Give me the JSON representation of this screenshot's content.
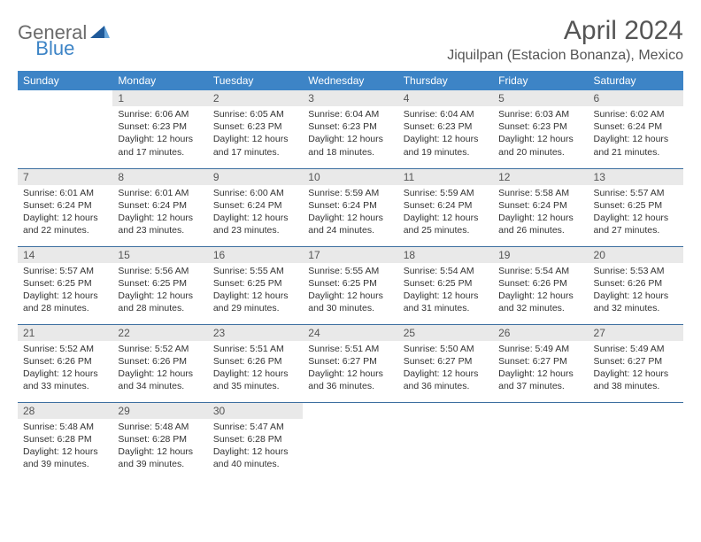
{
  "logo": {
    "general": "General",
    "blue": "Blue"
  },
  "title": "April 2024",
  "location": "Jiquilpan (Estacion Bonanza), Mexico",
  "colors": {
    "header_bg": "#3d84c6",
    "header_text": "#ffffff",
    "daynum_bg": "#e9e9e9",
    "row_border": "#3d6fa0",
    "title_color": "#555555"
  },
  "weekdays": [
    "Sunday",
    "Monday",
    "Tuesday",
    "Wednesday",
    "Thursday",
    "Friday",
    "Saturday"
  ],
  "weeks": [
    [
      {
        "empty": true
      },
      {
        "num": "1",
        "sunrise": "Sunrise: 6:06 AM",
        "sunset": "Sunset: 6:23 PM",
        "daylight": "Daylight: 12 hours and 17 minutes."
      },
      {
        "num": "2",
        "sunrise": "Sunrise: 6:05 AM",
        "sunset": "Sunset: 6:23 PM",
        "daylight": "Daylight: 12 hours and 17 minutes."
      },
      {
        "num": "3",
        "sunrise": "Sunrise: 6:04 AM",
        "sunset": "Sunset: 6:23 PM",
        "daylight": "Daylight: 12 hours and 18 minutes."
      },
      {
        "num": "4",
        "sunrise": "Sunrise: 6:04 AM",
        "sunset": "Sunset: 6:23 PM",
        "daylight": "Daylight: 12 hours and 19 minutes."
      },
      {
        "num": "5",
        "sunrise": "Sunrise: 6:03 AM",
        "sunset": "Sunset: 6:23 PM",
        "daylight": "Daylight: 12 hours and 20 minutes."
      },
      {
        "num": "6",
        "sunrise": "Sunrise: 6:02 AM",
        "sunset": "Sunset: 6:24 PM",
        "daylight": "Daylight: 12 hours and 21 minutes."
      }
    ],
    [
      {
        "num": "7",
        "sunrise": "Sunrise: 6:01 AM",
        "sunset": "Sunset: 6:24 PM",
        "daylight": "Daylight: 12 hours and 22 minutes."
      },
      {
        "num": "8",
        "sunrise": "Sunrise: 6:01 AM",
        "sunset": "Sunset: 6:24 PM",
        "daylight": "Daylight: 12 hours and 23 minutes."
      },
      {
        "num": "9",
        "sunrise": "Sunrise: 6:00 AM",
        "sunset": "Sunset: 6:24 PM",
        "daylight": "Daylight: 12 hours and 23 minutes."
      },
      {
        "num": "10",
        "sunrise": "Sunrise: 5:59 AM",
        "sunset": "Sunset: 6:24 PM",
        "daylight": "Daylight: 12 hours and 24 minutes."
      },
      {
        "num": "11",
        "sunrise": "Sunrise: 5:59 AM",
        "sunset": "Sunset: 6:24 PM",
        "daylight": "Daylight: 12 hours and 25 minutes."
      },
      {
        "num": "12",
        "sunrise": "Sunrise: 5:58 AM",
        "sunset": "Sunset: 6:24 PM",
        "daylight": "Daylight: 12 hours and 26 minutes."
      },
      {
        "num": "13",
        "sunrise": "Sunrise: 5:57 AM",
        "sunset": "Sunset: 6:25 PM",
        "daylight": "Daylight: 12 hours and 27 minutes."
      }
    ],
    [
      {
        "num": "14",
        "sunrise": "Sunrise: 5:57 AM",
        "sunset": "Sunset: 6:25 PM",
        "daylight": "Daylight: 12 hours and 28 minutes."
      },
      {
        "num": "15",
        "sunrise": "Sunrise: 5:56 AM",
        "sunset": "Sunset: 6:25 PM",
        "daylight": "Daylight: 12 hours and 28 minutes."
      },
      {
        "num": "16",
        "sunrise": "Sunrise: 5:55 AM",
        "sunset": "Sunset: 6:25 PM",
        "daylight": "Daylight: 12 hours and 29 minutes."
      },
      {
        "num": "17",
        "sunrise": "Sunrise: 5:55 AM",
        "sunset": "Sunset: 6:25 PM",
        "daylight": "Daylight: 12 hours and 30 minutes."
      },
      {
        "num": "18",
        "sunrise": "Sunrise: 5:54 AM",
        "sunset": "Sunset: 6:25 PM",
        "daylight": "Daylight: 12 hours and 31 minutes."
      },
      {
        "num": "19",
        "sunrise": "Sunrise: 5:54 AM",
        "sunset": "Sunset: 6:26 PM",
        "daylight": "Daylight: 12 hours and 32 minutes."
      },
      {
        "num": "20",
        "sunrise": "Sunrise: 5:53 AM",
        "sunset": "Sunset: 6:26 PM",
        "daylight": "Daylight: 12 hours and 32 minutes."
      }
    ],
    [
      {
        "num": "21",
        "sunrise": "Sunrise: 5:52 AM",
        "sunset": "Sunset: 6:26 PM",
        "daylight": "Daylight: 12 hours and 33 minutes."
      },
      {
        "num": "22",
        "sunrise": "Sunrise: 5:52 AM",
        "sunset": "Sunset: 6:26 PM",
        "daylight": "Daylight: 12 hours and 34 minutes."
      },
      {
        "num": "23",
        "sunrise": "Sunrise: 5:51 AM",
        "sunset": "Sunset: 6:26 PM",
        "daylight": "Daylight: 12 hours and 35 minutes."
      },
      {
        "num": "24",
        "sunrise": "Sunrise: 5:51 AM",
        "sunset": "Sunset: 6:27 PM",
        "daylight": "Daylight: 12 hours and 36 minutes."
      },
      {
        "num": "25",
        "sunrise": "Sunrise: 5:50 AM",
        "sunset": "Sunset: 6:27 PM",
        "daylight": "Daylight: 12 hours and 36 minutes."
      },
      {
        "num": "26",
        "sunrise": "Sunrise: 5:49 AM",
        "sunset": "Sunset: 6:27 PM",
        "daylight": "Daylight: 12 hours and 37 minutes."
      },
      {
        "num": "27",
        "sunrise": "Sunrise: 5:49 AM",
        "sunset": "Sunset: 6:27 PM",
        "daylight": "Daylight: 12 hours and 38 minutes."
      }
    ],
    [
      {
        "num": "28",
        "sunrise": "Sunrise: 5:48 AM",
        "sunset": "Sunset: 6:28 PM",
        "daylight": "Daylight: 12 hours and 39 minutes."
      },
      {
        "num": "29",
        "sunrise": "Sunrise: 5:48 AM",
        "sunset": "Sunset: 6:28 PM",
        "daylight": "Daylight: 12 hours and 39 minutes."
      },
      {
        "num": "30",
        "sunrise": "Sunrise: 5:47 AM",
        "sunset": "Sunset: 6:28 PM",
        "daylight": "Daylight: 12 hours and 40 minutes."
      },
      {
        "empty": true
      },
      {
        "empty": true
      },
      {
        "empty": true
      },
      {
        "empty": true
      }
    ]
  ]
}
